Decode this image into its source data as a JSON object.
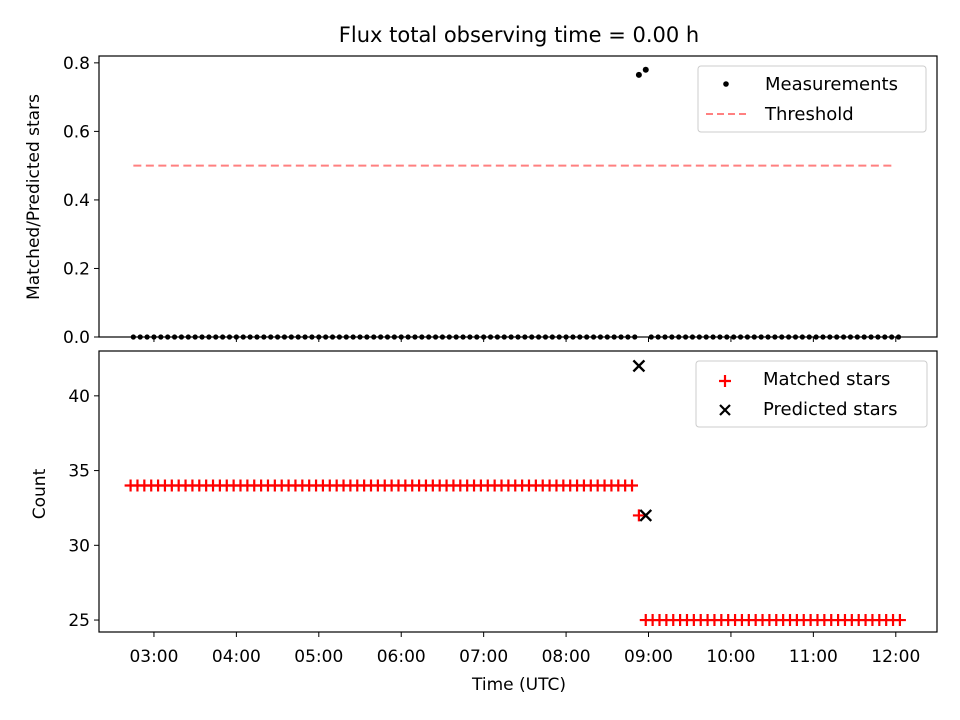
{
  "chart_data": [
    {
      "type": "scatter",
      "title": "Flux total observing time = 0.00 h",
      "xlabel": "",
      "ylabel": "Matched/Predicted stars",
      "xlim": [
        "02:20",
        "12:30"
      ],
      "ylim": [
        0,
        0.82
      ],
      "yticks": [
        0.0,
        0.2,
        0.4,
        0.6,
        0.8
      ],
      "ytick_labels": [
        "0.0",
        "0.2",
        "0.4",
        "0.6",
        "0.8"
      ],
      "legend_position": "top-right",
      "grid": false,
      "series": [
        {
          "name": "Measurements",
          "kind": "scatter",
          "marker": "dot",
          "color": "#000000",
          "segments": [
            {
              "start": "02:45",
              "end": "08:50",
              "step_min": 5,
              "value": 0.0
            },
            {
              "start": "09:02",
              "end": "12:02",
              "step_min": 5,
              "value": 0.0
            }
          ],
          "points": [
            {
              "x": "08:53",
              "y": 0.765
            },
            {
              "x": "08:58",
              "y": 0.78
            }
          ]
        },
        {
          "name": "Threshold",
          "kind": "line",
          "style": "dashed",
          "color": "#ff8080",
          "x": [
            "02:45",
            "12:00"
          ],
          "y": [
            0.5,
            0.5
          ]
        }
      ]
    },
    {
      "type": "scatter",
      "title": "",
      "xlabel": "Time (UTC)",
      "ylabel": "Count",
      "xlim": [
        "02:20",
        "12:30"
      ],
      "ylim": [
        24.2,
        43.0
      ],
      "yticks": [
        25,
        30,
        35,
        40
      ],
      "ytick_labels": [
        "25",
        "30",
        "35",
        "40"
      ],
      "xticks": [
        "03:00",
        "04:00",
        "05:00",
        "06:00",
        "07:00",
        "08:00",
        "09:00",
        "10:00",
        "11:00",
        "12:00"
      ],
      "legend_position": "top-right",
      "grid": false,
      "series": [
        {
          "name": "Matched stars",
          "kind": "scatter",
          "marker": "plus",
          "color": "#ff0000",
          "segments": [
            {
              "start": "02:43",
              "end": "08:48",
              "step_min": 5,
              "value": 34
            },
            {
              "start": "08:58",
              "end": "12:03",
              "step_min": 5,
              "value": 25
            }
          ],
          "points": [
            {
              "x": "08:53",
              "y": 32
            }
          ]
        },
        {
          "name": "Predicted stars",
          "kind": "scatter",
          "marker": "x",
          "color": "#000000",
          "points": [
            {
              "x": "08:53",
              "y": 42
            },
            {
              "x": "08:58",
              "y": 32
            }
          ]
        }
      ]
    }
  ]
}
